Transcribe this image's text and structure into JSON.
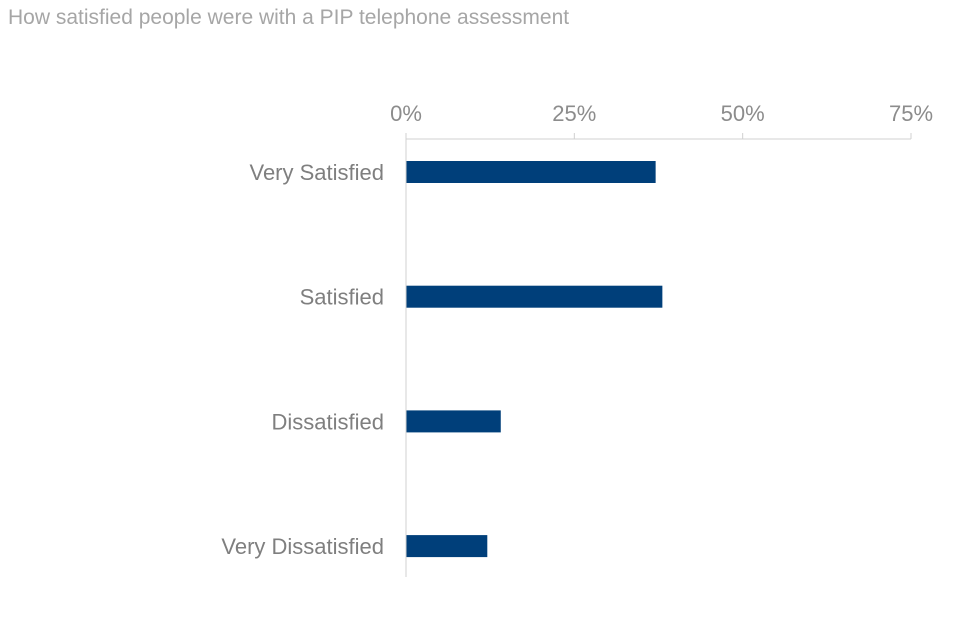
{
  "chart_data": {
    "type": "bar",
    "orientation": "horizontal",
    "title": "How satisfied people were with a PIP telephone assessment",
    "categories": [
      "Very Satisfied",
      "Satisfied",
      "Dissatisfied",
      "Very Dissatisfied"
    ],
    "values": [
      37,
      38,
      14,
      12
    ],
    "xlim": [
      0,
      75
    ],
    "ticks": [
      "0%",
      "25%",
      "50%",
      "75%"
    ],
    "tick_values": [
      0,
      25,
      50,
      75
    ],
    "axis_position": "top",
    "grid": false,
    "legend": "none",
    "bar_color": "#003f7a"
  }
}
